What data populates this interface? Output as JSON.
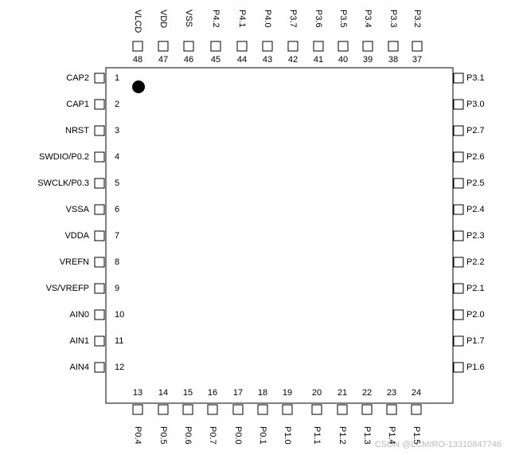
{
  "left": [
    {
      "number": "1",
      "name": "CAP2"
    },
    {
      "number": "2",
      "name": "CAP1"
    },
    {
      "number": "3",
      "name": "NRST"
    },
    {
      "number": "4",
      "name": "SWDIO/P0.2"
    },
    {
      "number": "5",
      "name": "SWCLK/P0.3"
    },
    {
      "number": "6",
      "name": "VSSA"
    },
    {
      "number": "7",
      "name": "VDDA"
    },
    {
      "number": "8",
      "name": "VREFN"
    },
    {
      "number": "9",
      "name": "VS/VREFP"
    },
    {
      "number": "10",
      "name": "AIN0"
    },
    {
      "number": "11",
      "name": "AIN1"
    },
    {
      "number": "12",
      "name": "AIN4"
    }
  ],
  "bottom": [
    {
      "number": "13",
      "name": "P0.4"
    },
    {
      "number": "14",
      "name": "P0.5"
    },
    {
      "number": "15",
      "name": "P0.6"
    },
    {
      "number": "16",
      "name": "P0.7"
    },
    {
      "number": "17",
      "name": "P0.0"
    },
    {
      "number": "18",
      "name": "P0.1"
    },
    {
      "number": "19",
      "name": "P1.0"
    },
    {
      "number": "20",
      "name": "P1.1"
    },
    {
      "number": "21",
      "name": "P1.2"
    },
    {
      "number": "22",
      "name": "P1.3"
    },
    {
      "number": "23",
      "name": "P1.4"
    },
    {
      "number": "24",
      "name": "P1.5"
    }
  ],
  "right": [
    {
      "name": "P3.1"
    },
    {
      "name": "P3.0"
    },
    {
      "name": "P2.7"
    },
    {
      "name": "P2.6"
    },
    {
      "name": "P2.5"
    },
    {
      "name": "P2.4"
    },
    {
      "name": "P2.3"
    },
    {
      "name": "P2.2"
    },
    {
      "name": "P2.1"
    },
    {
      "name": "P2.0"
    },
    {
      "name": "P1.7"
    },
    {
      "name": "P1.6"
    }
  ],
  "top": [
    {
      "number": "48",
      "name": "VLCD"
    },
    {
      "number": "47",
      "name": "VDD"
    },
    {
      "number": "46",
      "name": "VSS"
    },
    {
      "number": "45",
      "name": "P4.2"
    },
    {
      "number": "44",
      "name": "P4.1"
    },
    {
      "number": "43",
      "name": "P4.0"
    },
    {
      "number": "42",
      "name": "P3.7"
    },
    {
      "number": "41",
      "name": "P3.6"
    },
    {
      "number": "40",
      "name": "P3.5"
    },
    {
      "number": "39",
      "name": "P3.4"
    },
    {
      "number": "38",
      "name": "P3.3"
    },
    {
      "number": "37",
      "name": "P3.2"
    }
  ],
  "watermark": "CSDN @LCMIRO-13310847746"
}
